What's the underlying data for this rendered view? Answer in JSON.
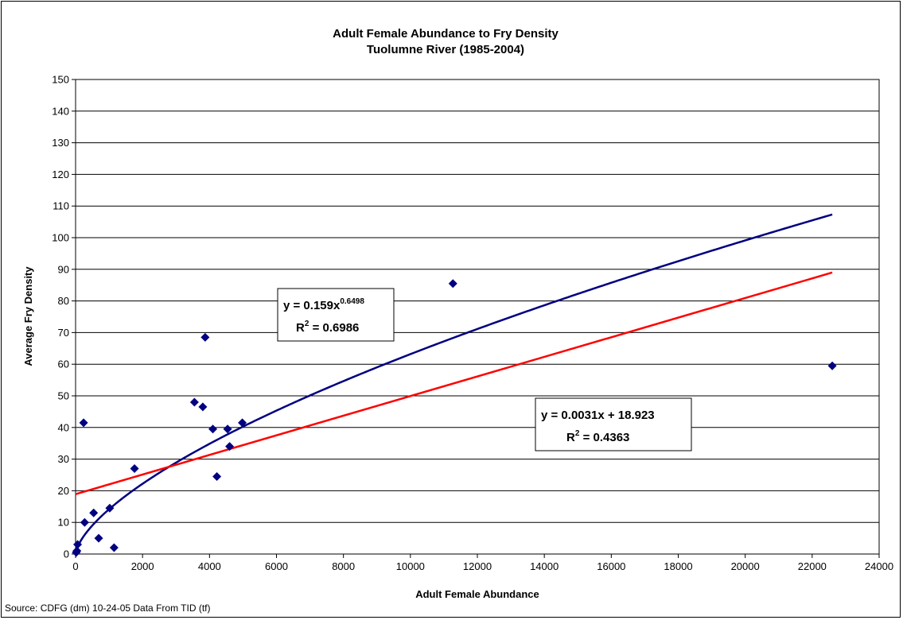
{
  "chart_data": {
    "type": "scatter",
    "title": "Adult Female Abundance to Fry Density",
    "subtitle": "Tuolumne River (1985-2004)",
    "xlabel": "Adult Female Abundance",
    "ylabel": "Average Fry Density",
    "xlim": [
      0,
      24000
    ],
    "ylim": [
      0,
      150
    ],
    "x_ticks": [
      "0",
      "2000",
      "4000",
      "6000",
      "8000",
      "10000",
      "12000",
      "14000",
      "16000",
      "18000",
      "20000",
      "22000",
      "24000"
    ],
    "y_ticks": [
      "0",
      "10",
      "20",
      "30",
      "40",
      "50",
      "60",
      "70",
      "80",
      "90",
      "100",
      "110",
      "120",
      "130",
      "140",
      "150"
    ],
    "grid": "horizontal",
    "legend": "none",
    "points": [
      {
        "x": 20,
        "y": 0.5
      },
      {
        "x": 40,
        "y": 1
      },
      {
        "x": 60,
        "y": 3
      },
      {
        "x": 240,
        "y": 41.5
      },
      {
        "x": 270,
        "y": 10
      },
      {
        "x": 540,
        "y": 13
      },
      {
        "x": 690,
        "y": 5
      },
      {
        "x": 1020,
        "y": 14.5
      },
      {
        "x": 1150,
        "y": 2
      },
      {
        "x": 1760,
        "y": 27
      },
      {
        "x": 3550,
        "y": 48
      },
      {
        "x": 3800,
        "y": 46.5
      },
      {
        "x": 3870,
        "y": 68.5
      },
      {
        "x": 4100,
        "y": 39.5
      },
      {
        "x": 4220,
        "y": 24.5
      },
      {
        "x": 4540,
        "y": 39.5
      },
      {
        "x": 4600,
        "y": 34
      },
      {
        "x": 4980,
        "y": 41.5
      },
      {
        "x": 11270,
        "y": 85.5
      },
      {
        "x": 22600,
        "y": 59.5
      }
    ],
    "power_trendline": {
      "a": 0.159,
      "b": 0.6498,
      "x_range": [
        0,
        22600
      ]
    },
    "linear_trendline": {
      "slope": 0.0031,
      "intercept": 18.923,
      "x_range": [
        0,
        22600
      ]
    },
    "annotations": {
      "power": {
        "eq_prefix": "y = 0.159x",
        "eq_exp": "0.6498",
        "r2_prefix": "R",
        "r2_sup": "2",
        "r2_value": " = 0.6986"
      },
      "linear": {
        "eq": "y = 0.0031x + 18.923",
        "r2_prefix": "R",
        "r2_sup": "2",
        "r2_value": " = 0.4363"
      }
    },
    "colors": {
      "points": "#000080",
      "power_line": "#000080",
      "linear_line": "#ff0000"
    }
  },
  "source_note": "Source: CDFG (dm) 10-24-05 Data From TID (tf)"
}
